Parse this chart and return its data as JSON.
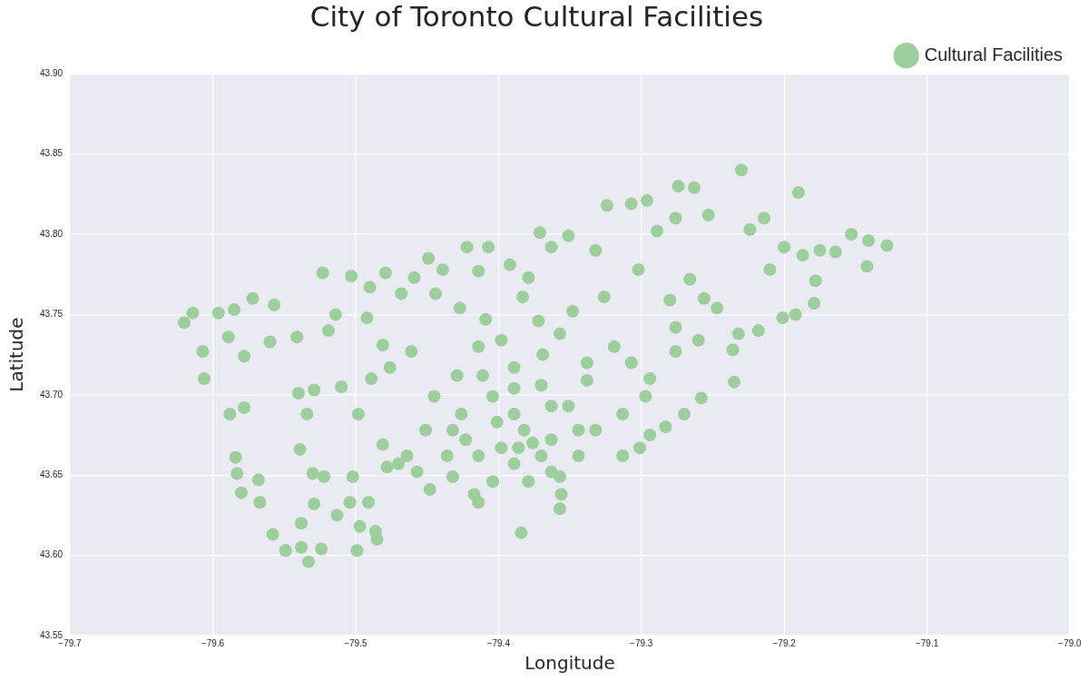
{
  "chart_data": {
    "type": "scatter",
    "title": "City of Toronto Cultural Facilities",
    "xlabel": "Longitude",
    "ylabel": "Latitude",
    "xlim": [
      -79.7,
      -79.0
    ],
    "xticks": [
      {
        "value": -79.7,
        "label": "−79.7"
      },
      {
        "value": -79.6,
        "label": "−79.6"
      },
      {
        "value": -79.5,
        "label": "−79.5"
      },
      {
        "value": -79.4,
        "label": "−79.4"
      },
      {
        "value": -79.3,
        "label": "−79.3"
      },
      {
        "value": -79.2,
        "label": "−79.2"
      },
      {
        "value": -79.1,
        "label": "−79.1"
      },
      {
        "value": -79.0,
        "label": "−79.0"
      }
    ],
    "ylim": [
      43.55,
      43.9
    ],
    "yticks": [
      {
        "value": 43.55,
        "label": "43.55"
      },
      {
        "value": 43.6,
        "label": "43.60"
      },
      {
        "value": 43.65,
        "label": "43.65"
      },
      {
        "value": 43.7,
        "label": "43.70"
      },
      {
        "value": 43.75,
        "label": "43.75"
      },
      {
        "value": 43.8,
        "label": "43.80"
      },
      {
        "value": 43.85,
        "label": "43.85"
      },
      {
        "value": 43.9,
        "label": "43.90"
      }
    ],
    "grid": true,
    "legend": "top right",
    "marker": "circle",
    "series": [
      {
        "name": "Cultural Facilities",
        "color": "#9ccf9c",
        "x": [
          -79.62,
          -79.607,
          -79.606,
          -79.614,
          -79.596,
          -79.585,
          -79.572,
          -79.589,
          -79.578,
          -79.588,
          -79.578,
          -79.584,
          -79.583,
          -79.58,
          -79.567,
          -79.558,
          -79.568,
          -79.557,
          -79.56,
          -79.549,
          -79.533,
          -79.524,
          -79.499,
          -79.538,
          -79.538,
          -79.529,
          -79.513,
          -79.504,
          -79.497,
          -79.486,
          -79.485,
          -79.491,
          -79.53,
          -79.522,
          -79.502,
          -79.539,
          -79.54,
          -79.529,
          -79.534,
          -79.541,
          -79.523,
          -79.519,
          -79.514,
          -79.503,
          -79.49,
          -79.479,
          -79.468,
          -79.459,
          -79.449,
          -79.444,
          -79.461,
          -79.476,
          -79.489,
          -79.51,
          -79.481,
          -79.492,
          -79.498,
          -79.481,
          -79.478,
          -79.464,
          -79.451,
          -79.436,
          -79.426,
          -79.445,
          -79.448,
          -79.432,
          -79.417,
          -79.414,
          -79.404,
          -79.439,
          -79.422,
          -79.407,
          -79.414,
          -79.427,
          -79.409,
          -79.398,
          -79.414,
          -79.392,
          -79.379,
          -79.371,
          -79.363,
          -79.351,
          -79.383,
          -79.372,
          -79.369,
          -79.357,
          -79.348,
          -79.332,
          -79.324,
          -79.307,
          -79.296,
          -79.289,
          -79.302,
          -79.274,
          -79.263,
          -79.276,
          -79.253,
          -79.23,
          -79.224,
          -79.19,
          -79.214,
          -79.21,
          -79.2,
          -79.187,
          -79.175,
          -79.164,
          -79.153,
          -79.141,
          -79.128,
          -79.142,
          -79.178,
          -79.179,
          -79.192,
          -79.201,
          -79.218,
          -79.232,
          -79.236,
          -79.235,
          -79.247,
          -79.256,
          -79.26,
          -79.266,
          -79.276,
          -79.28,
          -79.276,
          -79.258,
          -79.27,
          -79.283,
          -79.294,
          -79.301,
          -79.313,
          -79.313,
          -79.297,
          -79.294,
          -79.307,
          -79.319,
          -79.326,
          -79.338,
          -79.351,
          -79.332,
          -79.344,
          -79.357,
          -79.356,
          -79.357,
          -79.384,
          -79.379,
          -79.389,
          -79.398,
          -79.37,
          -79.363,
          -79.382,
          -79.401,
          -79.37,
          -79.389,
          -79.404,
          -79.389,
          -79.363,
          -79.338,
          -79.414,
          -79.423,
          -79.432,
          -79.457,
          -79.47,
          -79.363,
          -79.344,
          -79.389,
          -79.411,
          -79.429,
          -79.386,
          -79.376
        ],
        "values": [
          43.745,
          43.727,
          43.71,
          43.751,
          43.751,
          43.753,
          43.76,
          43.736,
          43.724,
          43.688,
          43.692,
          43.661,
          43.651,
          43.639,
          43.633,
          43.613,
          43.647,
          43.756,
          43.733,
          43.603,
          43.596,
          43.604,
          43.603,
          43.605,
          43.62,
          43.632,
          43.625,
          43.633,
          43.618,
          43.615,
          43.61,
          43.633,
          43.651,
          43.649,
          43.649,
          43.666,
          43.701,
          43.703,
          43.688,
          43.736,
          43.776,
          43.74,
          43.75,
          43.774,
          43.767,
          43.776,
          43.763,
          43.773,
          43.785,
          43.763,
          43.727,
          43.717,
          43.71,
          43.705,
          43.731,
          43.748,
          43.688,
          43.669,
          43.655,
          43.662,
          43.678,
          43.662,
          43.688,
          43.699,
          43.641,
          43.649,
          43.638,
          43.633,
          43.646,
          43.778,
          43.792,
          43.792,
          43.777,
          43.754,
          43.747,
          43.734,
          43.73,
          43.781,
          43.773,
          43.801,
          43.792,
          43.799,
          43.761,
          43.746,
          43.725,
          43.738,
          43.752,
          43.79,
          43.818,
          43.819,
          43.821,
          43.802,
          43.778,
          43.83,
          43.829,
          43.81,
          43.812,
          43.84,
          43.803,
          43.826,
          43.81,
          43.778,
          43.792,
          43.787,
          43.79,
          43.789,
          43.8,
          43.796,
          43.793,
          43.78,
          43.771,
          43.757,
          43.75,
          43.748,
          43.74,
          43.738,
          43.728,
          43.708,
          43.754,
          43.76,
          43.734,
          43.772,
          43.742,
          43.759,
          43.727,
          43.698,
          43.688,
          43.68,
          43.675,
          43.667,
          43.662,
          43.688,
          43.699,
          43.71,
          43.72,
          43.73,
          43.761,
          43.709,
          43.693,
          43.678,
          43.662,
          43.649,
          43.638,
          43.629,
          43.614,
          43.646,
          43.657,
          43.667,
          43.662,
          43.672,
          43.678,
          43.683,
          43.706,
          43.704,
          43.699,
          43.688,
          43.693,
          43.72,
          43.662,
          43.672,
          43.678,
          43.652,
          43.657,
          43.652,
          43.678,
          43.717,
          43.712,
          43.712,
          43.667,
          43.67
        ]
      }
    ]
  }
}
